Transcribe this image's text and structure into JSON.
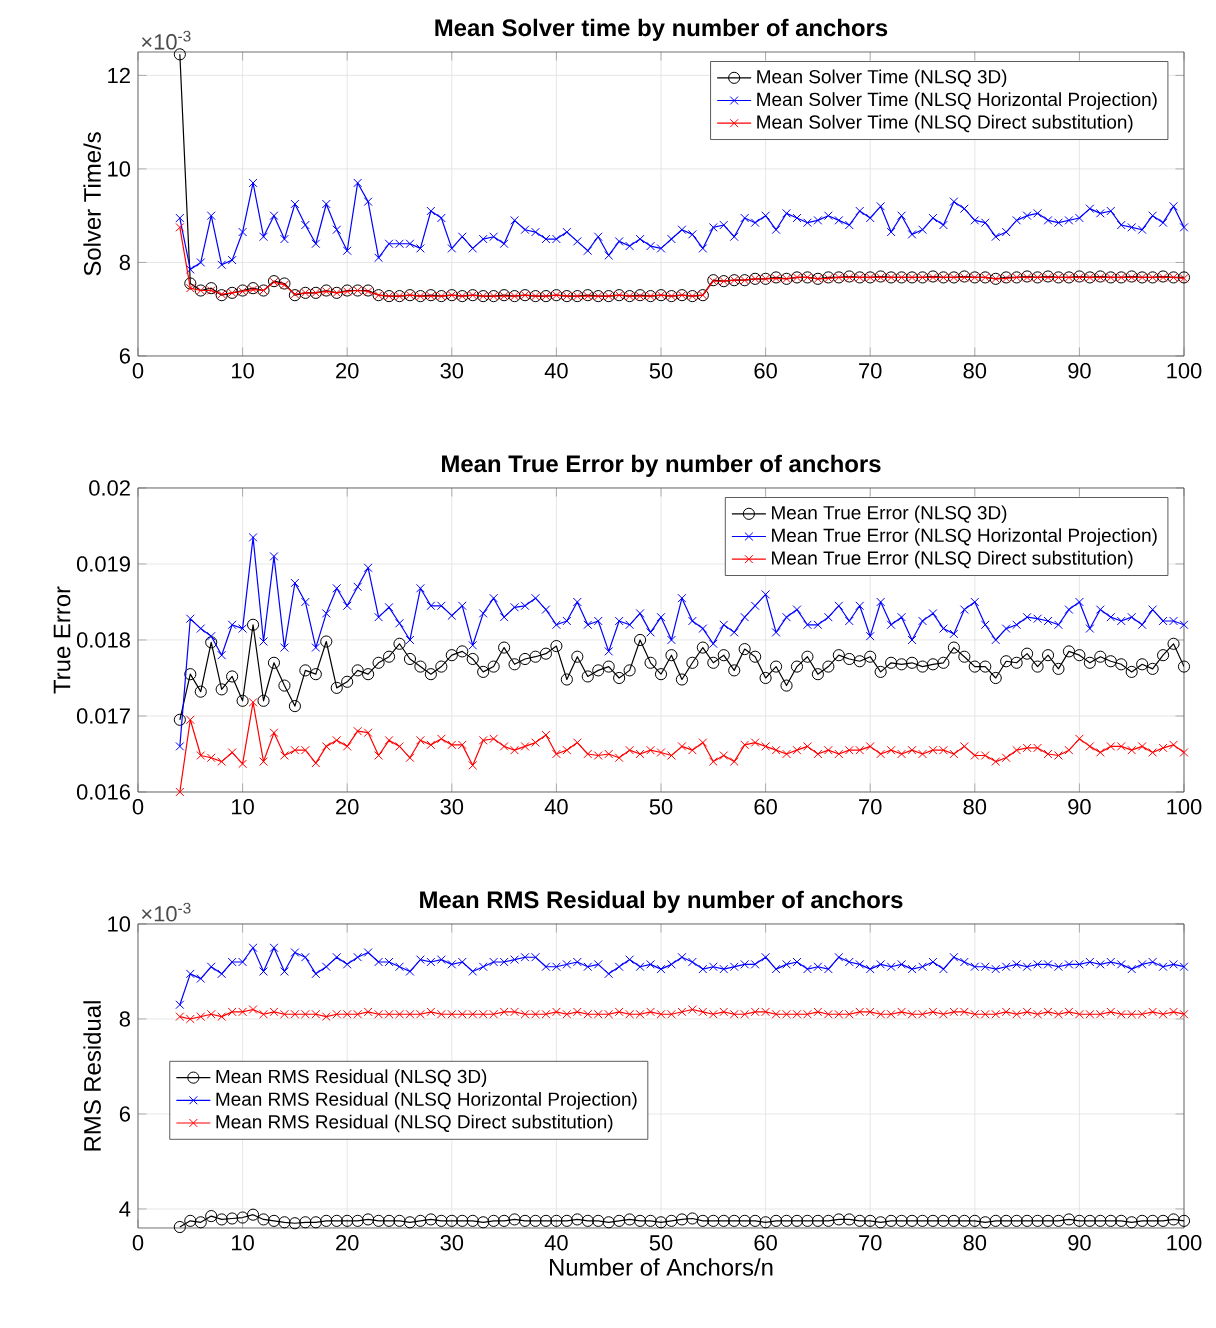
{
  "chart_data": [
    {
      "type": "line",
      "title": "Mean Solver time by number of anchors",
      "ylabel": "Solver Time/s",
      "annotations": [
        "×10$^{-3}$"
      ],
      "xlim": [
        0,
        100
      ],
      "ylim": [
        6,
        12.5
      ],
      "xticks": [
        0,
        10,
        20,
        30,
        40,
        50,
        60,
        70,
        80,
        90,
        100
      ],
      "yticks": [
        6,
        8,
        10,
        12
      ],
      "grid": true,
      "legend": "top right",
      "x": [
        4,
        5,
        6,
        7,
        8,
        9,
        10,
        11,
        12,
        13,
        14,
        15,
        16,
        17,
        18,
        19,
        20,
        21,
        22,
        23,
        24,
        25,
        26,
        27,
        28,
        29,
        30,
        31,
        32,
        33,
        34,
        35,
        36,
        37,
        38,
        39,
        40,
        41,
        42,
        43,
        44,
        45,
        46,
        47,
        48,
        49,
        50,
        51,
        52,
        53,
        54,
        55,
        56,
        57,
        58,
        59,
        60,
        61,
        62,
        63,
        64,
        65,
        66,
        67,
        68,
        69,
        70,
        71,
        72,
        73,
        74,
        75,
        76,
        77,
        78,
        79,
        80,
        81,
        82,
        83,
        84,
        85,
        86,
        87,
        88,
        89,
        90,
        91,
        92,
        93,
        94,
        95,
        96,
        97,
        98,
        99,
        100
      ],
      "series": [
        {
          "name": "Mean Solver Time (NLSQ 3D)",
          "color": "#000000",
          "marker": "circle",
          "values": [
            12.45,
            7.55,
            7.4,
            7.45,
            7.3,
            7.35,
            7.4,
            7.45,
            7.4,
            7.6,
            7.55,
            7.3,
            7.35,
            7.35,
            7.4,
            7.35,
            7.4,
            7.4,
            7.4,
            7.3,
            7.28,
            7.28,
            7.3,
            7.28,
            7.3,
            7.28,
            7.3,
            7.28,
            7.3,
            7.28,
            7.28,
            7.3,
            7.28,
            7.3,
            7.28,
            7.28,
            7.3,
            7.28,
            7.28,
            7.3,
            7.28,
            7.28,
            7.3,
            7.28,
            7.3,
            7.28,
            7.3,
            7.28,
            7.3,
            7.28,
            7.3,
            7.62,
            7.6,
            7.62,
            7.62,
            7.65,
            7.65,
            7.68,
            7.65,
            7.68,
            7.68,
            7.65,
            7.68,
            7.68,
            7.7,
            7.68,
            7.68,
            7.7,
            7.68,
            7.68,
            7.68,
            7.68,
            7.7,
            7.68,
            7.68,
            7.7,
            7.68,
            7.68,
            7.65,
            7.68,
            7.68,
            7.7,
            7.68,
            7.7,
            7.68,
            7.68,
            7.7,
            7.68,
            7.7,
            7.68,
            7.68,
            7.7,
            7.68,
            7.68,
            7.7,
            7.68,
            7.68
          ]
        },
        {
          "name": "Mean Solver Time (NLSQ Horizontal Projection)",
          "color": "#0000ff",
          "marker": "cross",
          "values": [
            8.95,
            7.85,
            8.0,
            9.0,
            7.95,
            8.05,
            8.65,
            9.7,
            8.55,
            9.0,
            8.5,
            9.25,
            8.8,
            8.4,
            9.25,
            8.7,
            8.25,
            9.7,
            9.3,
            8.1,
            8.4,
            8.4,
            8.4,
            8.3,
            9.1,
            8.95,
            8.3,
            8.55,
            8.3,
            8.5,
            8.55,
            8.4,
            8.9,
            8.7,
            8.65,
            8.5,
            8.5,
            8.65,
            8.45,
            8.25,
            8.55,
            8.15,
            8.45,
            8.35,
            8.5,
            8.35,
            8.3,
            8.5,
            8.7,
            8.6,
            8.3,
            8.75,
            8.8,
            8.55,
            8.95,
            8.85,
            9.0,
            8.7,
            9.05,
            8.95,
            8.85,
            8.9,
            9.0,
            8.9,
            8.8,
            9.1,
            8.95,
            9.2,
            8.65,
            9.0,
            8.6,
            8.7,
            8.95,
            8.8,
            9.3,
            9.15,
            8.9,
            8.85,
            8.55,
            8.65,
            8.9,
            9.0,
            9.05,
            8.9,
            8.85,
            8.9,
            8.95,
            9.15,
            9.05,
            9.1,
            8.8,
            8.75,
            8.7,
            9.0,
            8.85,
            9.2,
            8.75
          ]
        },
        {
          "name": "Mean Solver Time (NLSQ Direct substitution)",
          "color": "#ff0000",
          "marker": "cross",
          "values": [
            8.75,
            7.45,
            7.4,
            7.4,
            7.32,
            7.35,
            7.38,
            7.42,
            7.4,
            7.58,
            7.52,
            7.32,
            7.35,
            7.35,
            7.38,
            7.35,
            7.38,
            7.4,
            7.38,
            7.3,
            7.28,
            7.28,
            7.3,
            7.28,
            7.28,
            7.28,
            7.3,
            7.28,
            7.3,
            7.28,
            7.28,
            7.28,
            7.28,
            7.3,
            7.28,
            7.28,
            7.3,
            7.28,
            7.28,
            7.28,
            7.28,
            7.28,
            7.3,
            7.28,
            7.28,
            7.28,
            7.3,
            7.28,
            7.3,
            7.28,
            7.3,
            7.6,
            7.6,
            7.62,
            7.62,
            7.65,
            7.65,
            7.66,
            7.65,
            7.68,
            7.68,
            7.65,
            7.66,
            7.68,
            7.68,
            7.68,
            7.68,
            7.68,
            7.68,
            7.68,
            7.68,
            7.68,
            7.68,
            7.68,
            7.68,
            7.68,
            7.68,
            7.68,
            7.65,
            7.66,
            7.68,
            7.68,
            7.68,
            7.68,
            7.68,
            7.68,
            7.68,
            7.68,
            7.68,
            7.68,
            7.68,
            7.68,
            7.68,
            7.68,
            7.68,
            7.68,
            7.66
          ]
        }
      ]
    },
    {
      "type": "line",
      "title": "Mean True Error by number of anchors",
      "ylabel": "True Error",
      "xlim": [
        0,
        100
      ],
      "ylim": [
        0.016,
        0.02
      ],
      "xticks": [
        0,
        10,
        20,
        30,
        40,
        50,
        60,
        70,
        80,
        90,
        100
      ],
      "yticks": [
        0.016,
        0.017,
        0.018,
        0.019,
        0.02
      ],
      "grid": true,
      "legend": "top right",
      "x": [
        4,
        5,
        6,
        7,
        8,
        9,
        10,
        11,
        12,
        13,
        14,
        15,
        16,
        17,
        18,
        19,
        20,
        21,
        22,
        23,
        24,
        25,
        26,
        27,
        28,
        29,
        30,
        31,
        32,
        33,
        34,
        35,
        36,
        37,
        38,
        39,
        40,
        41,
        42,
        43,
        44,
        45,
        46,
        47,
        48,
        49,
        50,
        51,
        52,
        53,
        54,
        55,
        56,
        57,
        58,
        59,
        60,
        61,
        62,
        63,
        64,
        65,
        66,
        67,
        68,
        69,
        70,
        71,
        72,
        73,
        74,
        75,
        76,
        77,
        78,
        79,
        80,
        81,
        82,
        83,
        84,
        85,
        86,
        87,
        88,
        89,
        90,
        91,
        92,
        93,
        94,
        95,
        96,
        97,
        98,
        99,
        100
      ],
      "series": [
        {
          "name": "Mean True Error (NLSQ 3D)",
          "color": "#000000",
          "marker": "circle",
          "values": [
            0.01695,
            0.01755,
            0.01732,
            0.01797,
            0.01735,
            0.01752,
            0.0172,
            0.0182,
            0.0172,
            0.0177,
            0.0174,
            0.01713,
            0.0176,
            0.01755,
            0.01798,
            0.01737,
            0.01745,
            0.0176,
            0.01755,
            0.0177,
            0.01778,
            0.01795,
            0.01775,
            0.01765,
            0.01755,
            0.01765,
            0.0178,
            0.01785,
            0.01775,
            0.01758,
            0.01765,
            0.0179,
            0.01768,
            0.01775,
            0.01778,
            0.01782,
            0.01792,
            0.01748,
            0.01778,
            0.01752,
            0.0176,
            0.01765,
            0.0175,
            0.0176,
            0.018,
            0.0177,
            0.01755,
            0.0178,
            0.01748,
            0.0177,
            0.0179,
            0.0177,
            0.0178,
            0.0176,
            0.01788,
            0.01778,
            0.0175,
            0.01765,
            0.0174,
            0.01765,
            0.01778,
            0.01755,
            0.01765,
            0.0178,
            0.01775,
            0.01772,
            0.01778,
            0.01758,
            0.0177,
            0.01768,
            0.0177,
            0.01765,
            0.01768,
            0.0177,
            0.0179,
            0.01778,
            0.01765,
            0.01765,
            0.0175,
            0.01772,
            0.0177,
            0.01782,
            0.01765,
            0.0178,
            0.01762,
            0.01785,
            0.0178,
            0.0177,
            0.01778,
            0.01772,
            0.01768,
            0.01758,
            0.01768,
            0.01762,
            0.0178,
            0.01795,
            0.01765
          ]
        },
        {
          "name": "Mean True Error (NLSQ Horizontal Projection)",
          "color": "#0000ff",
          "marker": "cross",
          "values": [
            0.0166,
            0.01828,
            0.01815,
            0.01805,
            0.0178,
            0.0182,
            0.01815,
            0.01935,
            0.01798,
            0.0191,
            0.0179,
            0.01875,
            0.0185,
            0.0179,
            0.01835,
            0.01868,
            0.01845,
            0.0187,
            0.01895,
            0.0183,
            0.01843,
            0.01822,
            0.018,
            0.01868,
            0.01845,
            0.01845,
            0.01832,
            0.01845,
            0.01793,
            0.01835,
            0.01855,
            0.0183,
            0.01843,
            0.01845,
            0.01855,
            0.0184,
            0.0182,
            0.01825,
            0.0185,
            0.0182,
            0.01825,
            0.01785,
            0.01825,
            0.0182,
            0.01835,
            0.0181,
            0.0183,
            0.018,
            0.01855,
            0.01825,
            0.01815,
            0.01795,
            0.0182,
            0.0181,
            0.0183,
            0.01845,
            0.0186,
            0.0181,
            0.0183,
            0.0184,
            0.0182,
            0.0182,
            0.0183,
            0.01845,
            0.01825,
            0.01845,
            0.01805,
            0.0185,
            0.0182,
            0.0183,
            0.018,
            0.01825,
            0.01835,
            0.01815,
            0.01808,
            0.0184,
            0.0185,
            0.0182,
            0.018,
            0.01815,
            0.0182,
            0.0183,
            0.01828,
            0.01825,
            0.0182,
            0.0184,
            0.0185,
            0.01815,
            0.0184,
            0.0183,
            0.01825,
            0.0183,
            0.0182,
            0.0184,
            0.01825,
            0.01825,
            0.0182
          ]
        },
        {
          "name": "Mean True Error (NLSQ Direct substitution)",
          "color": "#ff0000",
          "marker": "cross",
          "values": [
            0.016,
            0.01695,
            0.01648,
            0.01645,
            0.0164,
            0.01652,
            0.01637,
            0.01718,
            0.0164,
            0.01678,
            0.01648,
            0.01655,
            0.01655,
            0.01638,
            0.0166,
            0.01668,
            0.0166,
            0.0168,
            0.01678,
            0.01648,
            0.01668,
            0.0166,
            0.01645,
            0.01668,
            0.01662,
            0.0167,
            0.01662,
            0.01662,
            0.01635,
            0.01668,
            0.0167,
            0.0166,
            0.01655,
            0.0166,
            0.01665,
            0.01675,
            0.0165,
            0.01655,
            0.01665,
            0.0165,
            0.01648,
            0.0165,
            0.01645,
            0.01655,
            0.0165,
            0.01655,
            0.01652,
            0.01648,
            0.0166,
            0.01655,
            0.01665,
            0.0164,
            0.01648,
            0.0164,
            0.01662,
            0.01665,
            0.0166,
            0.01655,
            0.0165,
            0.01655,
            0.0166,
            0.0165,
            0.01655,
            0.0165,
            0.01655,
            0.01655,
            0.0166,
            0.0165,
            0.01655,
            0.0165,
            0.01655,
            0.0165,
            0.01655,
            0.01655,
            0.0165,
            0.0166,
            0.01648,
            0.01648,
            0.0164,
            0.01645,
            0.01655,
            0.01658,
            0.01658,
            0.0165,
            0.01648,
            0.01655,
            0.0167,
            0.0166,
            0.01652,
            0.0166,
            0.0166,
            0.01655,
            0.0166,
            0.01652,
            0.01658,
            0.01662,
            0.01652
          ]
        }
      ]
    },
    {
      "type": "line",
      "title": "Mean RMS Residual by number of anchors",
      "xlabel": "Number of Anchors/n",
      "ylabel": "RMS Residual",
      "annotations": [
        "×10$^{-3}$"
      ],
      "xlim": [
        0,
        100
      ],
      "ylim": [
        3.6,
        10
      ],
      "xticks": [
        0,
        10,
        20,
        30,
        40,
        50,
        60,
        70,
        80,
        90,
        100
      ],
      "yticks": [
        4,
        6,
        8,
        10
      ],
      "grid": true,
      "legend": "left",
      "x": [
        4,
        5,
        6,
        7,
        8,
        9,
        10,
        11,
        12,
        13,
        14,
        15,
        16,
        17,
        18,
        19,
        20,
        21,
        22,
        23,
        24,
        25,
        26,
        27,
        28,
        29,
        30,
        31,
        32,
        33,
        34,
        35,
        36,
        37,
        38,
        39,
        40,
        41,
        42,
        43,
        44,
        45,
        46,
        47,
        48,
        49,
        50,
        51,
        52,
        53,
        54,
        55,
        56,
        57,
        58,
        59,
        60,
        61,
        62,
        63,
        64,
        65,
        66,
        67,
        68,
        69,
        70,
        71,
        72,
        73,
        74,
        75,
        76,
        77,
        78,
        79,
        80,
        81,
        82,
        83,
        84,
        85,
        86,
        87,
        88,
        89,
        90,
        91,
        92,
        93,
        94,
        95,
        96,
        97,
        98,
        99,
        100
      ],
      "series": [
        {
          "name": "Mean RMS Residual (NLSQ 3D)",
          "color": "#000000",
          "marker": "circle",
          "values": [
            3.62,
            3.75,
            3.72,
            3.85,
            3.78,
            3.8,
            3.82,
            3.88,
            3.78,
            3.75,
            3.72,
            3.7,
            3.72,
            3.72,
            3.75,
            3.75,
            3.75,
            3.75,
            3.78,
            3.75,
            3.75,
            3.75,
            3.72,
            3.75,
            3.78,
            3.75,
            3.75,
            3.75,
            3.75,
            3.72,
            3.75,
            3.75,
            3.78,
            3.75,
            3.75,
            3.75,
            3.75,
            3.75,
            3.78,
            3.75,
            3.75,
            3.72,
            3.75,
            3.78,
            3.75,
            3.75,
            3.72,
            3.75,
            3.78,
            3.8,
            3.75,
            3.75,
            3.75,
            3.75,
            3.75,
            3.75,
            3.72,
            3.75,
            3.75,
            3.75,
            3.75,
            3.75,
            3.75,
            3.78,
            3.78,
            3.75,
            3.75,
            3.72,
            3.75,
            3.75,
            3.75,
            3.75,
            3.75,
            3.75,
            3.75,
            3.75,
            3.75,
            3.72,
            3.75,
            3.75,
            3.75,
            3.75,
            3.75,
            3.75,
            3.75,
            3.78,
            3.75,
            3.75,
            3.75,
            3.75,
            3.75,
            3.72,
            3.75,
            3.75,
            3.75,
            3.78,
            3.75
          ]
        },
        {
          "name": "Mean RMS Residual (NLSQ Horizontal Projection)",
          "color": "#0000ff",
          "marker": "cross",
          "values": [
            8.3,
            8.95,
            8.85,
            9.1,
            8.95,
            9.2,
            9.2,
            9.5,
            9.0,
            9.5,
            9.0,
            9.4,
            9.3,
            8.95,
            9.1,
            9.3,
            9.15,
            9.3,
            9.4,
            9.2,
            9.2,
            9.1,
            9.0,
            9.25,
            9.2,
            9.25,
            9.15,
            9.2,
            9.0,
            9.1,
            9.2,
            9.2,
            9.25,
            9.3,
            9.3,
            9.1,
            9.1,
            9.15,
            9.2,
            9.1,
            9.15,
            8.95,
            9.1,
            9.25,
            9.1,
            9.15,
            9.05,
            9.15,
            9.3,
            9.2,
            9.05,
            9.1,
            9.05,
            9.1,
            9.15,
            9.15,
            9.3,
            9.05,
            9.15,
            9.2,
            9.05,
            9.1,
            9.05,
            9.3,
            9.2,
            9.15,
            9.05,
            9.15,
            9.1,
            9.15,
            9.05,
            9.1,
            9.2,
            9.05,
            9.3,
            9.2,
            9.1,
            9.1,
            9.05,
            9.1,
            9.15,
            9.1,
            9.15,
            9.15,
            9.1,
            9.15,
            9.15,
            9.2,
            9.15,
            9.2,
            9.15,
            9.05,
            9.15,
            9.2,
            9.1,
            9.15,
            9.1
          ]
        },
        {
          "name": "Mean RMS Residual (NLSQ Direct substitution)",
          "color": "#ff0000",
          "marker": "cross",
          "values": [
            8.05,
            8.0,
            8.05,
            8.1,
            8.05,
            8.15,
            8.15,
            8.2,
            8.1,
            8.15,
            8.1,
            8.1,
            8.1,
            8.1,
            8.05,
            8.1,
            8.1,
            8.1,
            8.15,
            8.1,
            8.1,
            8.1,
            8.1,
            8.1,
            8.15,
            8.1,
            8.1,
            8.1,
            8.1,
            8.1,
            8.1,
            8.15,
            8.15,
            8.1,
            8.1,
            8.1,
            8.15,
            8.1,
            8.15,
            8.1,
            8.1,
            8.1,
            8.15,
            8.1,
            8.1,
            8.15,
            8.1,
            8.1,
            8.15,
            8.2,
            8.15,
            8.1,
            8.15,
            8.1,
            8.1,
            8.15,
            8.15,
            8.1,
            8.1,
            8.1,
            8.1,
            8.15,
            8.1,
            8.1,
            8.1,
            8.15,
            8.15,
            8.1,
            8.1,
            8.15,
            8.1,
            8.1,
            8.15,
            8.1,
            8.15,
            8.15,
            8.1,
            8.1,
            8.1,
            8.15,
            8.1,
            8.15,
            8.1,
            8.15,
            8.1,
            8.15,
            8.1,
            8.1,
            8.1,
            8.15,
            8.1,
            8.1,
            8.1,
            8.15,
            8.1,
            8.15,
            8.1
          ]
        }
      ]
    }
  ]
}
